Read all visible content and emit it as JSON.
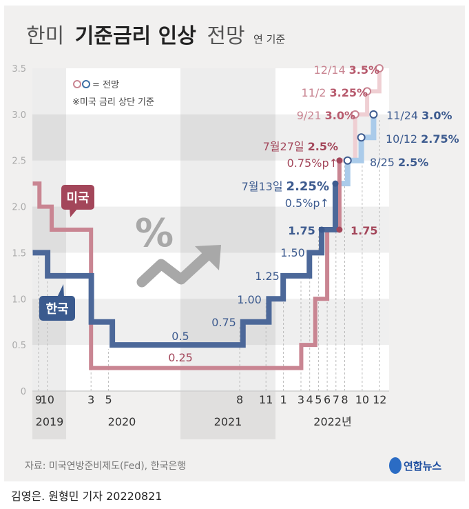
{
  "header": {
    "title_light_1": "한미",
    "title_bold": "기준금리 인상",
    "title_light_2": "전망",
    "unit_note": "연 기준"
  },
  "legend": {
    "forecast_marker_label": "= 전망",
    "note": "※미국 금리 상단 기준"
  },
  "callouts": {
    "us": "미국",
    "korea": "한국"
  },
  "source": "자료: 미국연방준비제도(Fed), 한국은행",
  "logo_text": "연합뉴스",
  "byline": "김영은. 원형민 기자 20220821",
  "colors": {
    "us_line": "#c98592",
    "us_forecast": "#efcfd3",
    "us_label": "#a3465a",
    "korea_line": "#4c6899",
    "korea_forecast": "#aacbea",
    "korea_label": "#3d5b8f",
    "background": "#f1f0ef",
    "icon_gray": "#a8a8a8"
  },
  "chart_data": {
    "type": "line",
    "step": true,
    "title": "한미 기준금리 인상 전망",
    "ylabel": "연 기준",
    "ylim": [
      0,
      3.5
    ],
    "y_ticks": [
      "0",
      "0.5",
      "1.0",
      "1.5",
      "2.0",
      "2.5",
      "3.0",
      "3.5"
    ],
    "xlim": [
      "2019-08-25",
      "2022-12-31"
    ],
    "x_month_ticks": [
      {
        "date": "2019-09",
        "label": "9"
      },
      {
        "date": "2019-10",
        "label": "10"
      },
      {
        "date": "2020-03",
        "label": "3"
      },
      {
        "date": "2020-05",
        "label": "5"
      },
      {
        "date": "2021-08",
        "label": "8"
      },
      {
        "date": "2021-11",
        "label": "11"
      },
      {
        "date": "2022-01",
        "label": "1"
      },
      {
        "date": "2022-03",
        "label": "3"
      },
      {
        "date": "2022-04",
        "label": "4"
      },
      {
        "date": "2022-05",
        "label": "5"
      },
      {
        "date": "2022-06",
        "label": "6"
      },
      {
        "date": "2022-07",
        "label": "7"
      },
      {
        "date": "2022-08",
        "label": "8"
      },
      {
        "date": "2022-10",
        "label": "10"
      },
      {
        "date": "2022-12",
        "label": "12"
      }
    ],
    "x_year_labels": [
      "2019",
      "2020",
      "2021",
      "2022년"
    ],
    "grid": false,
    "series": [
      {
        "name": "미국",
        "actual": [
          [
            "2019-08-25",
            2.25
          ],
          [
            "2019-09-18",
            2.0
          ],
          [
            "2019-10-30",
            1.75
          ],
          [
            "2020-03-15",
            0.25
          ],
          [
            "2022-03-16",
            0.5
          ],
          [
            "2022-05-04",
            1.0
          ],
          [
            "2022-06-15",
            1.75
          ],
          [
            "2022-07-27",
            2.5
          ]
        ],
        "forecast": [
          [
            "2022-09-21",
            3.0
          ],
          [
            "2022-11-02",
            3.25
          ],
          [
            "2022-12-14",
            3.5
          ]
        ]
      },
      {
        "name": "한국",
        "actual": [
          [
            "2019-08-25",
            1.5
          ],
          [
            "2019-10-16",
            1.25
          ],
          [
            "2020-03-16",
            0.75
          ],
          [
            "2020-05-28",
            0.5
          ],
          [
            "2021-08-26",
            0.75
          ],
          [
            "2021-11-25",
            1.0
          ],
          [
            "2022-01-14",
            1.25
          ],
          [
            "2022-04-14",
            1.5
          ],
          [
            "2022-05-26",
            1.75
          ],
          [
            "2022-07-13",
            2.25
          ]
        ],
        "forecast": [
          [
            "2022-08-25",
            2.5
          ],
          [
            "2022-10-12",
            2.75
          ],
          [
            "2022-11-24",
            3.0
          ]
        ]
      }
    ],
    "annotations": {
      "korea_levels": {
        "v050": "0.5",
        "v075": "0.75",
        "v100": "1.00",
        "v125": "1.25",
        "v150": "1.50",
        "v175": "1.75"
      },
      "us_levels": {
        "v025": "0.25",
        "v175": "1.75"
      },
      "korea_jul": {
        "date": "7월13일",
        "value": "2.25%",
        "change": "0.5%p↑"
      },
      "us_jul": {
        "date": "7월27일",
        "value": "2.5%",
        "change": "0.75%p↑"
      },
      "korea_forecasts": [
        {
          "date": "8/25",
          "value": "2.5%"
        },
        {
          "date": "10/12",
          "value": "2.75%"
        },
        {
          "date": "11/24",
          "value": "3.0%"
        }
      ],
      "us_forecasts": [
        {
          "date": "9/21",
          "value": "3.0%"
        },
        {
          "date": "11/2",
          "value": "3.25%"
        },
        {
          "date": "12/14",
          "value": "3.5%"
        }
      ]
    }
  }
}
